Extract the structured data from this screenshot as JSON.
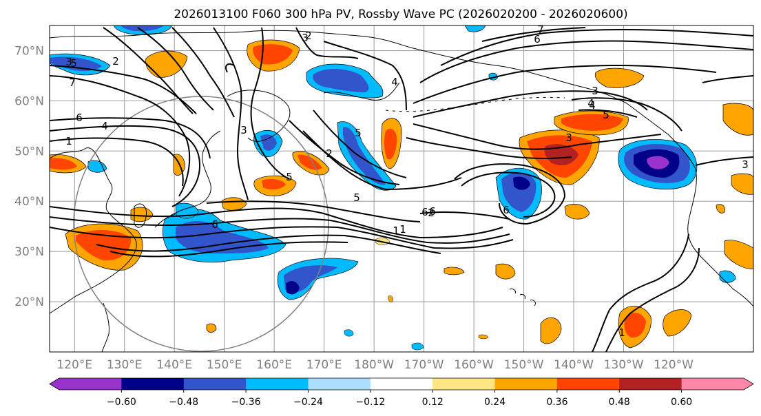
{
  "title": "2026013100 F060 300 hPa PV, Rossby Wave PC (2026020200 - 2026020600)",
  "map": {
    "lat_labels": [
      "70°N",
      "60°N",
      "50°N",
      "40°N",
      "30°N",
      "20°N"
    ],
    "lon_labels": [
      "120°E",
      "130°E",
      "140°E",
      "150°E",
      "160°E",
      "170°E",
      "180°W",
      "170°W",
      "160°W",
      "150°W",
      "140°W",
      "130°W",
      "120°W"
    ],
    "extent": {
      "lon_min": 115,
      "lon_max": 256,
      "lat_min": 10,
      "lat_max": 75
    },
    "pv_contour_labels": [
      "7",
      "6",
      "3",
      "2",
      "5",
      "4",
      "1",
      "6",
      "5",
      "4",
      "3",
      "2",
      "1",
      "5",
      "6",
      "6",
      "2",
      "3",
      "1",
      "3",
      "4",
      "5",
      "6",
      "7",
      "2",
      "4",
      "5",
      "3",
      "1",
      "6",
      "5",
      "3"
    ]
  },
  "colorbar": {
    "colors": [
      "#9933cc",
      "#000088",
      "#3355cc",
      "#00bbff",
      "#aaddff",
      "#ffffff",
      "#ffe680",
      "#ffa500",
      "#ff4500",
      "#b22222",
      "#ff88aa"
    ],
    "labels": [
      "−0.60",
      "−0.48",
      "−0.36",
      "−0.24",
      "−0.12",
      "0.12",
      "0.24",
      "0.36",
      "0.48",
      "0.60"
    ]
  }
}
